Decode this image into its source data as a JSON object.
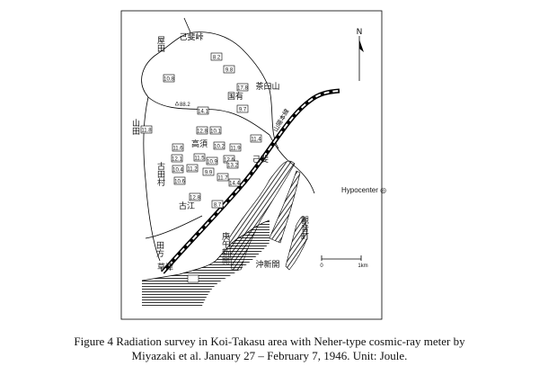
{
  "map": {
    "place_labels": [
      "己斐峠",
      "屋田",
      "茶臼山",
      "国有",
      "山田",
      "高須",
      "古田村",
      "古江",
      "己斐",
      "山陽本線",
      "觀音町",
      "庚午新開",
      "沖新開",
      "田方",
      "草津"
    ],
    "elevation": "88.2",
    "readings": [
      "8.2",
      "9.8",
      "10.8",
      "17.8",
      "9.7",
      "14.1",
      "11.8",
      "12.8",
      "10.1",
      "11.4",
      "11.6",
      "10.2",
      "11.9",
      "12.1",
      "11.5",
      "10.9",
      "12.6",
      "10.4",
      "11.2",
      "9.9",
      "13.2",
      "10.6",
      "11.7",
      "14.4",
      "12.8",
      "8.7"
    ],
    "north": "N",
    "hypocenter": "Hypocenter ◎",
    "scale": {
      "start": "0",
      "end": "1km"
    },
    "caption": [
      "Figure 4  Radiation survey in Koi-Takasu area with Neher-type cosmic-ray meter by",
      "Miyazaki et al. January 27 – February  7, 1946. Unit: Joule."
    ]
  }
}
